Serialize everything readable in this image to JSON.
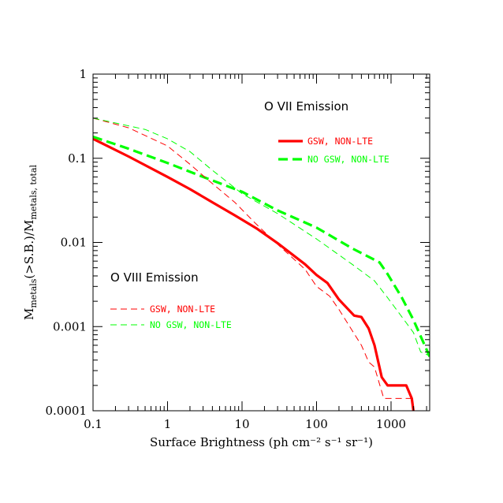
{
  "chart_data": {
    "type": "line",
    "xlabel": "Surface Brightness (ph cm⁻² s⁻¹ sr⁻¹)",
    "ylabel": "M_metals(>S.B.)/M_metals, total",
    "ylabel_parts": {
      "main1": "M",
      "sub1": "metals",
      "mid": "(>S.B.)/M",
      "sub2": "metals, total"
    },
    "xscale": "log",
    "yscale": "log",
    "xlim": [
      0.1,
      3300
    ],
    "ylim": [
      0.0001,
      1
    ],
    "xticks": [
      {
        "value": 0.1,
        "label": "0.1"
      },
      {
        "value": 1,
        "label": "1"
      },
      {
        "value": 10,
        "label": "10"
      },
      {
        "value": 100,
        "label": "100"
      },
      {
        "value": 1000,
        "label": "1000"
      }
    ],
    "yticks": [
      {
        "value": 0.0001,
        "label": "0.0001"
      },
      {
        "value": 0.001,
        "label": "0.001"
      },
      {
        "value": 0.01,
        "label": "0.01"
      },
      {
        "value": 0.1,
        "label": "0.1"
      },
      {
        "value": 1,
        "label": "1"
      }
    ],
    "grid": false,
    "panels": [
      {
        "title": "O VII Emission",
        "legend": [
          {
            "name": "GSW, NON-LTE",
            "series": 0
          },
          {
            "name": "NO GSW, NON-LTE",
            "series": 1
          }
        ]
      },
      {
        "title": "O VIII Emission",
        "legend": [
          {
            "name": "GSW, NON-LTE",
            "series": 2
          },
          {
            "name": "NO GSW, NON-LTE",
            "series": 3
          }
        ]
      }
    ],
    "series": [
      {
        "name": "GSW, NON-LTE",
        "color": "#ff0000",
        "style": "solid",
        "weight": "thick",
        "points": [
          [
            0.1,
            0.17
          ],
          [
            0.3,
            0.105
          ],
          [
            1,
            0.06
          ],
          [
            2,
            0.043
          ],
          [
            4,
            0.03
          ],
          [
            8,
            0.021
          ],
          [
            16,
            0.0145
          ],
          [
            30,
            0.0098
          ],
          [
            70,
            0.0055
          ],
          [
            100,
            0.0041
          ],
          [
            140,
            0.0033
          ],
          [
            200,
            0.0021
          ],
          [
            320,
            0.00135
          ],
          [
            400,
            0.0013
          ],
          [
            500,
            0.00095
          ],
          [
            600,
            0.0006
          ],
          [
            750,
            0.00025
          ],
          [
            900,
            0.0002
          ],
          [
            1600,
            0.0002
          ],
          [
            1900,
            0.00014
          ],
          [
            2000,
            0.0001
          ]
        ]
      },
      {
        "name": "NO GSW, NON-LTE",
        "color": "#00ff00",
        "style": "dashed",
        "weight": "thick",
        "points": [
          [
            0.1,
            0.18
          ],
          [
            0.3,
            0.13
          ],
          [
            1,
            0.088
          ],
          [
            3,
            0.06
          ],
          [
            10,
            0.04
          ],
          [
            30,
            0.024
          ],
          [
            100,
            0.015
          ],
          [
            300,
            0.0085
          ],
          [
            700,
            0.0058
          ],
          [
            900,
            0.0042
          ],
          [
            1400,
            0.0022
          ],
          [
            2000,
            0.0012
          ],
          [
            3300,
            0.00044
          ]
        ]
      },
      {
        "name": "GSW, NON-LTE",
        "color": "#ff0000",
        "style": "dashed",
        "weight": "thin",
        "points": [
          [
            0.1,
            0.3
          ],
          [
            0.3,
            0.23
          ],
          [
            1,
            0.14
          ],
          [
            2,
            0.085
          ],
          [
            4,
            0.05
          ],
          [
            8,
            0.03
          ],
          [
            15,
            0.017
          ],
          [
            30,
            0.0095
          ],
          [
            70,
            0.0048
          ],
          [
            100,
            0.003
          ],
          [
            150,
            0.0023
          ],
          [
            200,
            0.0016
          ],
          [
            300,
            0.0009
          ],
          [
            400,
            0.0006
          ],
          [
            500,
            0.00038
          ],
          [
            600,
            0.00033
          ],
          [
            800,
            0.00014
          ],
          [
            1500,
            0.00014
          ],
          [
            2000,
            0.00014
          ]
        ]
      },
      {
        "name": "NO GSW, NON-LTE",
        "color": "#00ff00",
        "style": "dashed",
        "weight": "thin",
        "points": [
          [
            0.1,
            0.3
          ],
          [
            0.5,
            0.22
          ],
          [
            1,
            0.17
          ],
          [
            2,
            0.12
          ],
          [
            4,
            0.072
          ],
          [
            10,
            0.038
          ],
          [
            30,
            0.022
          ],
          [
            100,
            0.011
          ],
          [
            300,
            0.0055
          ],
          [
            600,
            0.0035
          ],
          [
            900,
            0.0022
          ],
          [
            1500,
            0.0012
          ],
          [
            2000,
            0.00085
          ],
          [
            2500,
            0.0005
          ],
          [
            3300,
            0.00045
          ]
        ]
      }
    ]
  }
}
